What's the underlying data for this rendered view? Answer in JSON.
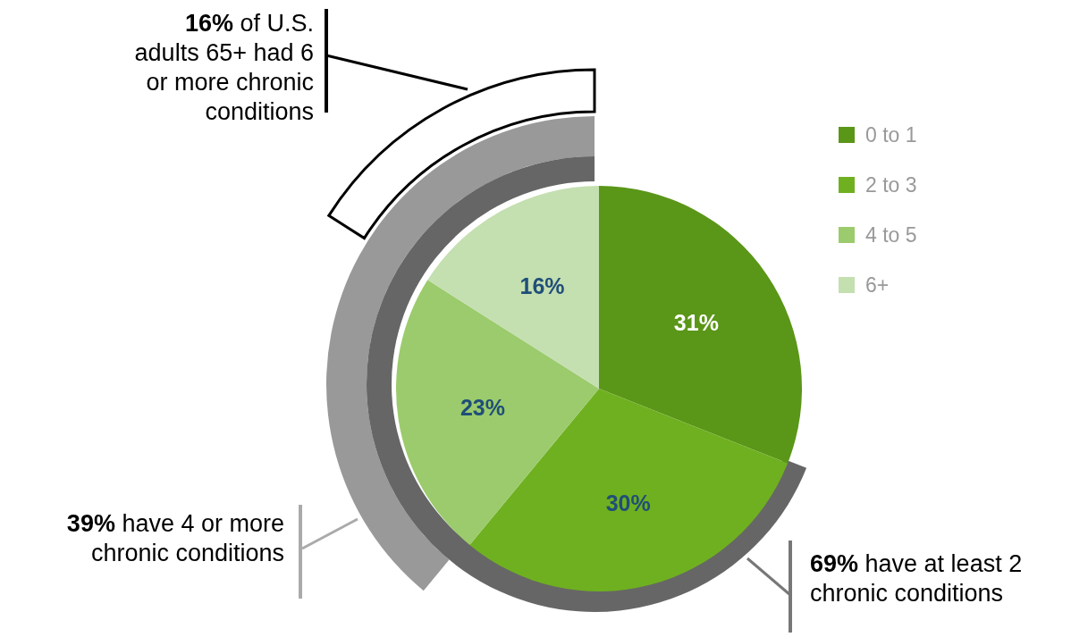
{
  "chart_data": {
    "type": "pie",
    "categories": [
      "0 to 1",
      "2 to 3",
      "4 to 5",
      "6+"
    ],
    "values": [
      31,
      30,
      23,
      16
    ],
    "colors": [
      "#5a9618",
      "#6fb020",
      "#9bcb6c",
      "#c4dfb0"
    ],
    "value_labels": [
      "31%",
      "30%",
      "23%",
      "16%"
    ],
    "legend": "right",
    "annotations": [
      "16% of U.S. adults 65+ had 6 or more chronic conditions",
      "39% have 4 or more chronic conditions",
      "69% have at least 2 chronic conditions"
    ]
  }
}
